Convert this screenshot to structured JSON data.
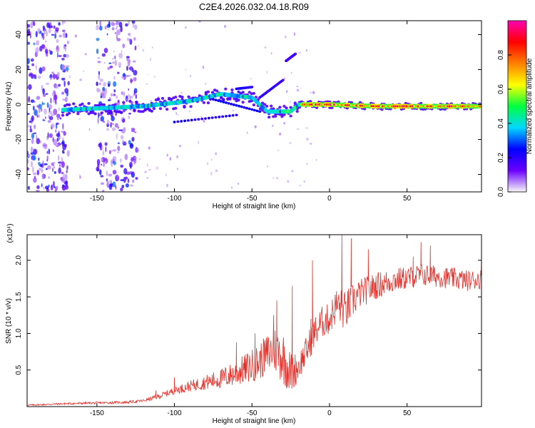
{
  "figure_title": "C2E4.2026.032.04.18.R09",
  "chart_data": [
    {
      "type": "heatmap",
      "title": "",
      "xlabel": "Height of straight line (km)",
      "ylabel": "Frequency (Hz)",
      "xlim": [
        -195,
        98
      ],
      "ylim": [
        -50,
        48
      ],
      "xticks": [
        "-150",
        "-100",
        "-50",
        "0",
        "50"
      ],
      "xtick_values": [
        -150,
        -100,
        -50,
        0,
        50
      ],
      "yticks": [
        "40",
        "20",
        "0",
        "-20",
        "-40"
      ],
      "ytick_values": [
        40,
        20,
        0,
        -20,
        -40
      ],
      "colorbar": {
        "label": "Normalized spectral amplitude",
        "range": [
          0,
          1
        ],
        "ticks": [
          "0.0",
          "0.2",
          "0.4",
          "0.6",
          "0.8"
        ],
        "tick_values": [
          0.0,
          0.2,
          0.4,
          0.6,
          0.8
        ],
        "colors": [
          "#f8f8f8",
          "#6a00ff",
          "#0000ff",
          "#00d8ff",
          "#00ff40",
          "#ffff00",
          "#ff8000",
          "#ff0000",
          "#ff00b4"
        ]
      },
      "ridge": [
        {
          "x": -170,
          "y": -3
        },
        {
          "x": -120,
          "y": -1
        },
        {
          "x": -90,
          "y": 2
        },
        {
          "x": -70,
          "y": 6
        },
        {
          "x": -50,
          "y": 4
        },
        {
          "x": -40,
          "y": -4
        },
        {
          "x": -25,
          "y": -4
        },
        {
          "x": -20,
          "y": 0
        },
        {
          "x": 0,
          "y": 0
        },
        {
          "x": 30,
          "y": -1
        },
        {
          "x": 98,
          "y": -1
        }
      ]
    },
    {
      "type": "line",
      "title": "",
      "xlabel": "Height of straight line (km)",
      "ylabel": "SNR (10 * v/v)",
      "y_multiplier": "(x10⁴)",
      "xlim": [
        -195,
        98
      ],
      "ylim": [
        0,
        2.35
      ],
      "xticks": [
        "-150",
        "-100",
        "-50",
        "0",
        "50"
      ],
      "xtick_values": [
        -150,
        -100,
        -50,
        0,
        50
      ],
      "yticks": [
        "2.0",
        "1.5",
        "1.0",
        "0.5"
      ],
      "ytick_values": [
        2.0,
        1.5,
        1.0,
        0.5
      ],
      "series_color": "#e8302a",
      "envelope": {
        "x": [
          -195,
          -170,
          -150,
          -130,
          -120,
          -110,
          -100,
          -90,
          -80,
          -70,
          -60,
          -50,
          -45,
          -40,
          -35,
          -30,
          -25,
          -20,
          -15,
          -10,
          -5,
          0,
          5,
          10,
          15,
          20,
          30,
          40,
          50,
          60,
          70,
          80,
          90,
          98
        ],
        "y": [
          0.02,
          0.04,
          0.05,
          0.06,
          0.08,
          0.14,
          0.22,
          0.28,
          0.33,
          0.38,
          0.46,
          0.56,
          0.62,
          0.72,
          0.78,
          0.68,
          0.45,
          0.55,
          0.75,
          1.0,
          1.15,
          1.2,
          1.4,
          1.3,
          1.45,
          1.55,
          1.65,
          1.72,
          1.76,
          1.8,
          1.78,
          1.75,
          1.72,
          1.75
        ]
      },
      "amplitude": {
        "x": [
          -195,
          -120,
          -100,
          -80,
          -60,
          -40,
          -30,
          -20,
          -10,
          0,
          10,
          20,
          50,
          98
        ],
        "y": [
          0.01,
          0.02,
          0.05,
          0.1,
          0.18,
          0.28,
          0.38,
          0.2,
          0.22,
          0.22,
          0.28,
          0.2,
          0.16,
          0.14
        ]
      },
      "spikes": [
        {
          "x": -112,
          "y": 0.22
        },
        {
          "x": -100,
          "y": 0.4
        },
        {
          "x": -60,
          "y": 0.88
        },
        {
          "x": -48,
          "y": 1.0
        },
        {
          "x": -36,
          "y": 1.25
        },
        {
          "x": -34,
          "y": 1.45
        },
        {
          "x": -24,
          "y": 1.65
        },
        {
          "x": -12,
          "y": 1.2
        },
        {
          "x": -11,
          "y": 2.0
        },
        {
          "x": 8,
          "y": 2.35
        },
        {
          "x": 10,
          "y": 1.4
        },
        {
          "x": 14,
          "y": 2.3
        },
        {
          "x": 25,
          "y": 2.15
        },
        {
          "x": 54,
          "y": 2.05
        },
        {
          "x": 59,
          "y": 2.25
        },
        {
          "x": 65,
          "y": 2.2
        },
        {
          "x": 98,
          "y": 2.05
        }
      ]
    }
  ]
}
